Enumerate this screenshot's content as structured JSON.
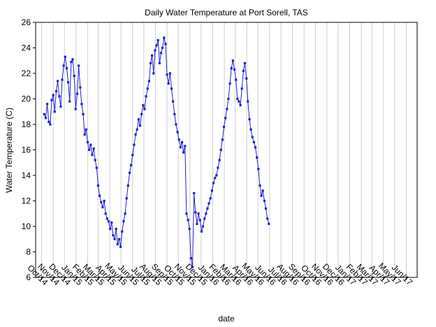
{
  "chart_data": {
    "type": "line",
    "title": "Daily Water Temperature at Port Sorell, TAS",
    "xlabel": "date",
    "ylabel": "Water Temperature (C)",
    "ylim": [
      6,
      26
    ],
    "yticks": [
      6,
      8,
      10,
      12,
      14,
      16,
      18,
      20,
      22,
      24,
      26
    ],
    "grid": "vertical",
    "x_range": [
      "2014-09-15",
      "2017-06-30"
    ],
    "xtick_dates": [
      "2014-10-01",
      "2014-11-01",
      "2014-12-01",
      "2015-01-01",
      "2015-02-01",
      "2015-03-01",
      "2015-04-01",
      "2015-05-01",
      "2015-06-01",
      "2015-07-01",
      "2015-08-01",
      "2015-09-01",
      "2015-10-01",
      "2015-11-01",
      "2015-12-01",
      "2016-01-01",
      "2016-02-01",
      "2016-03-01",
      "2016-04-01",
      "2016-05-01",
      "2016-06-01",
      "2016-07-01",
      "2016-08-01",
      "2016-09-01",
      "2016-10-01",
      "2016-11-01",
      "2016-12-01",
      "2017-01-01",
      "2017-02-01",
      "2017-03-01",
      "2017-04-01",
      "2017-05-01",
      "2017-06-01"
    ],
    "xtick_labels": [
      "Oct/14",
      "Nov/14",
      "Dec/14",
      "Jan/15",
      "Feb/15",
      "Mar/15",
      "Apr/15",
      "May/15",
      "Jun/15",
      "Jul/15",
      "Aug/15",
      "Sep/15",
      "Oct/15",
      "Nov/15",
      "Dec/15",
      "Jan/16",
      "Feb/16",
      "Mar/16",
      "Apr/16",
      "May/16",
      "Jun/16",
      "Jul/16",
      "Aug/16",
      "Sep/16",
      "Oct/16",
      "Nov/16",
      "Dec/16",
      "Jan/17",
      "Feb/17",
      "Mar/17",
      "Apr/17",
      "May/17",
      "Jun/17"
    ],
    "series_color": "#1f1fd6",
    "series": [
      {
        "name": "Water Temperature",
        "start_date": "2014-10-08",
        "step_days": 4,
        "values": [
          18.8,
          18.5,
          19.6,
          18.2,
          18.0,
          19.9,
          20.3,
          19.0,
          20.6,
          21.4,
          20.2,
          19.4,
          21.5,
          22.6,
          23.3,
          22.4,
          21.3,
          19.8,
          22.9,
          23.1,
          21.8,
          19.2,
          20.4,
          22.6,
          20.9,
          19.6,
          18.8,
          17.2,
          17.6,
          16.6,
          16.0,
          16.4,
          15.6,
          16.1,
          15.2,
          14.6,
          13.2,
          12.4,
          11.9,
          11.5,
          12.0,
          11.0,
          10.6,
          10.4,
          9.8,
          10.3,
          9.3,
          9.0,
          9.8,
          8.6,
          9.0,
          8.4,
          9.6,
          10.4,
          11.0,
          12.2,
          13.2,
          14.2,
          14.8,
          15.6,
          16.4,
          17.2,
          17.6,
          18.4,
          17.9,
          18.8,
          19.5,
          19.2,
          20.2,
          20.8,
          21.4,
          22.8,
          23.4,
          22.0,
          23.8,
          24.2,
          24.6,
          22.8,
          23.6,
          24.0,
          24.8,
          24.3,
          21.9,
          21.2,
          22.0,
          20.8,
          19.8,
          18.8,
          18.0,
          17.4,
          16.8,
          16.2,
          16.6,
          15.8,
          16.3,
          11.0,
          10.5,
          9.8,
          7.5,
          6.8,
          12.6,
          11.1,
          10.2,
          11.0,
          10.5,
          9.6,
          10.0,
          10.6,
          11.0,
          11.4,
          11.8,
          12.2,
          12.8,
          13.4,
          13.8,
          14.0,
          14.6,
          15.2,
          16.0,
          16.8,
          17.8,
          18.5,
          19.2,
          20.0,
          21.2,
          22.4,
          23.0,
          22.3,
          21.5,
          20.0,
          19.8,
          19.5,
          20.8,
          22.2,
          22.8,
          21.6,
          19.8,
          18.4,
          17.6,
          17.0,
          16.6,
          16.2,
          15.4,
          14.5,
          13.2,
          12.4,
          12.8,
          12.0,
          11.4,
          10.6,
          10.2
        ]
      }
    ]
  }
}
